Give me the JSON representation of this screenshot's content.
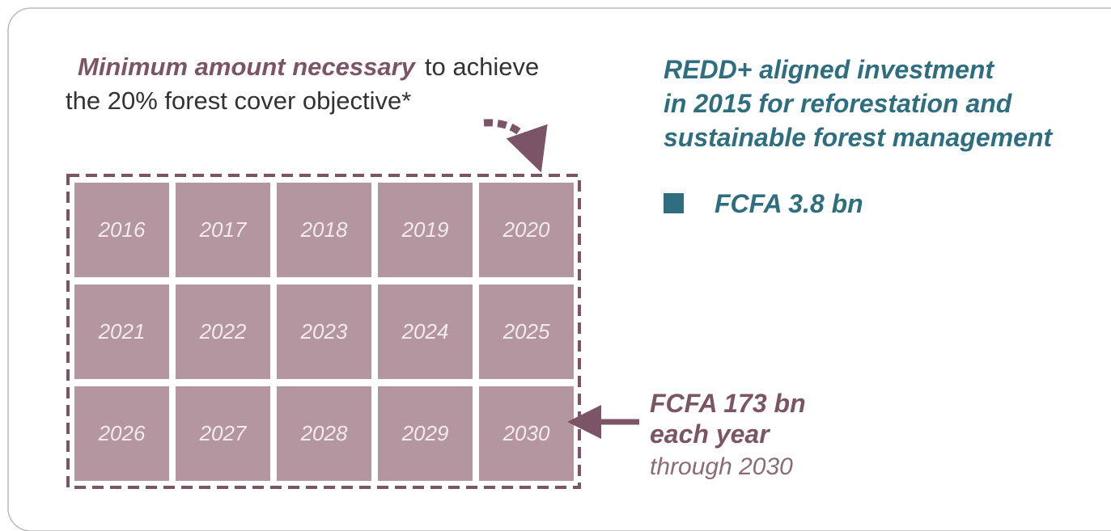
{
  "left_heading": {
    "emphasis": "Minimum amount necessary",
    "line1_rest": "to achieve",
    "line2": "the 20% forest cover objective*"
  },
  "years": [
    "2016",
    "2017",
    "2018",
    "2019",
    "2020",
    "2021",
    "2022",
    "2023",
    "2024",
    "2025",
    "2026",
    "2027",
    "2028",
    "2029",
    "2030"
  ],
  "annotation": {
    "line1": "FCFA 173 bn",
    "line2": "each year",
    "line3": "through 2030"
  },
  "right_heading": {
    "lines": [
      "REDD+ aligned investment",
      "in 2015 for reforestation and",
      "sustainable forest management"
    ]
  },
  "legend": {
    "label": "FCFA 3.8 bn"
  }
}
